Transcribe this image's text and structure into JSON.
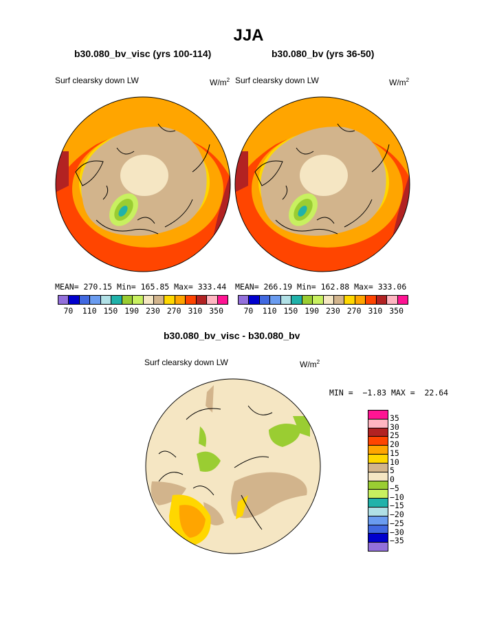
{
  "title": "JJA",
  "panels": [
    {
      "title": "b30.080_bv_visc (yrs 100-114)",
      "subtitle": "Surf clearsky down LW",
      "units": "W/m",
      "units_sup": "2",
      "stats": "MEAN= 270.15  Min= 165.85  Max= 333.44"
    },
    {
      "title": "b30.080_bv (yrs 36-50)",
      "subtitle": "Surf clearsky down LW",
      "units": "W/m",
      "units_sup": "2",
      "stats": "MEAN= 266.19  Min= 162.88  Max= 333.06"
    }
  ],
  "colorbar_top": {
    "colors": [
      "#9370db",
      "#0000cd",
      "#4169e1",
      "#6a9cf0",
      "#b0e0e6",
      "#20b2aa",
      "#9acd32",
      "#c8f060",
      "#f5e6c3",
      "#d2b48c",
      "#ffd700",
      "#ffa500",
      "#ff4500",
      "#b22222",
      "#ffb6c1",
      "#ff1493"
    ],
    "ticks": [
      "70",
      "110",
      "150",
      "190",
      "230",
      "270",
      "310",
      "350"
    ]
  },
  "diff": {
    "title": "b30.080_bv_visc - b30.080_bv",
    "subtitle": "Surf clearsky down LW",
    "units": "W/m",
    "units_sup": "2",
    "stats": "MIN =  −1.83 MAX =  22.64",
    "colorbar": {
      "colors": [
        "#ff1493",
        "#ffb6c1",
        "#b22222",
        "#ff4500",
        "#ffa500",
        "#ffd700",
        "#d2b48c",
        "#f5e6c3",
        "#9acd32",
        "#c8f060",
        "#20b2aa",
        "#b0e0e6",
        "#6a9cf0",
        "#4169e1",
        "#0000cd",
        "#9370db"
      ],
      "labels": [
        "35",
        "30",
        "25",
        "20",
        "15",
        "10",
        "5",
        "0",
        "−5",
        "−10",
        "−15",
        "−20",
        "−25",
        "−30",
        "−35"
      ]
    }
  }
}
